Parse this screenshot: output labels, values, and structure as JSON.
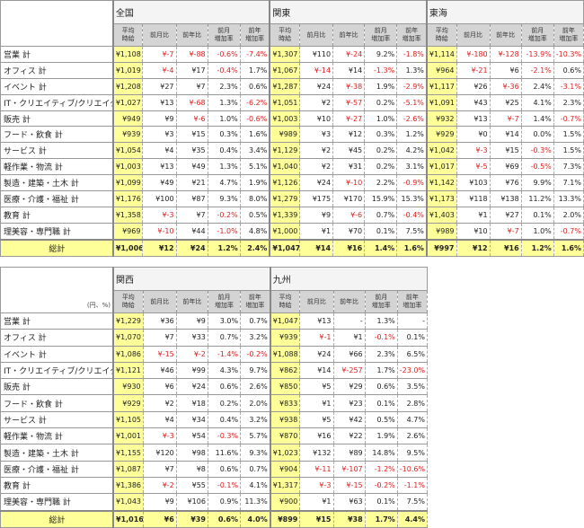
{
  "unit_label": "(円、%)",
  "sub_headers": [
    "平均時給",
    "前月比",
    "前年比",
    "前月増加率",
    "前年増加率"
  ],
  "sub_headers_display": [
    "平均\n時給",
    "前月比",
    "前年比",
    "前月\n増加率",
    "前年\n増加率"
  ],
  "row_labels": [
    "営業 計",
    "オフィス 計",
    "イベント 計",
    "IT・クリエイティブ/クリエイター 計",
    "販売 計",
    "フード・飲食 計",
    "サービス 計",
    "軽作業・物流 計",
    "製造・建築・土木 計",
    "医療・介護・福祉 計",
    "教育 計",
    "理美容・専門職 計",
    "総計"
  ],
  "colors": {
    "highlight": "#ffff99",
    "negative": "#e02020",
    "header": "#d4d4d4"
  },
  "tables": [
    {
      "corner": "",
      "regions": [
        {
          "name": "全国",
          "rows": [
            [
              "¥1,108",
              "¥-7",
              "¥-88",
              "-0.6%",
              "-7.4%"
            ],
            [
              "¥1,019",
              "¥-4",
              "¥17",
              "-0.4%",
              "1.7%"
            ],
            [
              "¥1,208",
              "¥27",
              "¥7",
              "2.3%",
              "0.6%"
            ],
            [
              "¥1,027",
              "¥13",
              "¥-68",
              "1.3%",
              "-6.2%"
            ],
            [
              "¥949",
              "¥9",
              "¥-6",
              "1.0%",
              "-0.6%"
            ],
            [
              "¥939",
              "¥3",
              "¥15",
              "0.3%",
              "1.6%"
            ],
            [
              "¥1,054",
              "¥4",
              "¥35",
              "0.4%",
              "3.4%"
            ],
            [
              "¥1,003",
              "¥13",
              "¥49",
              "1.3%",
              "5.1%"
            ],
            [
              "¥1,099",
              "¥49",
              "¥21",
              "4.7%",
              "1.9%"
            ],
            [
              "¥1,176",
              "¥100",
              "¥87",
              "9.3%",
              "8.0%"
            ],
            [
              "¥1,358",
              "¥-3",
              "¥7",
              "-0.2%",
              "0.5%"
            ],
            [
              "¥969",
              "¥-10",
              "¥44",
              "-1.0%",
              "4.8%"
            ],
            [
              "¥1,006",
              "¥12",
              "¥24",
              "1.2%",
              "2.4%"
            ]
          ]
        },
        {
          "name": "関東",
          "rows": [
            [
              "¥1,307",
              "¥110",
              "¥-24",
              "9.2%",
              "-1.8%"
            ],
            [
              "¥1,067",
              "¥-14",
              "¥14",
              "-1.3%",
              "1.3%"
            ],
            [
              "¥1,287",
              "¥24",
              "¥-38",
              "1.9%",
              "-2.9%"
            ],
            [
              "¥1,051",
              "¥2",
              "¥-57",
              "0.2%",
              "-5.1%"
            ],
            [
              "¥1,003",
              "¥10",
              "¥-27",
              "1.0%",
              "-2.6%"
            ],
            [
              "¥989",
              "¥3",
              "¥12",
              "0.3%",
              "1.2%"
            ],
            [
              "¥1,129",
              "¥2",
              "¥45",
              "0.2%",
              "4.2%"
            ],
            [
              "¥1,040",
              "¥2",
              "¥31",
              "0.2%",
              "3.1%"
            ],
            [
              "¥1,126",
              "¥24",
              "¥-10",
              "2.2%",
              "-0.9%"
            ],
            [
              "¥1,279",
              "¥175",
              "¥170",
              "15.9%",
              "15.3%"
            ],
            [
              "¥1,339",
              "¥9",
              "¥-6",
              "0.7%",
              "-0.4%"
            ],
            [
              "¥1,000",
              "¥1",
              "¥70",
              "0.1%",
              "7.5%"
            ],
            [
              "¥1,047",
              "¥14",
              "¥16",
              "1.4%",
              "1.6%"
            ]
          ]
        },
        {
          "name": "東海",
          "rows": [
            [
              "¥1,114",
              "¥-180",
              "¥-128",
              "-13.9%",
              "-10.3%"
            ],
            [
              "¥964",
              "¥-21",
              "¥6",
              "-2.1%",
              "0.6%"
            ],
            [
              "¥1,117",
              "¥26",
              "¥-36",
              "2.4%",
              "-3.1%"
            ],
            [
              "¥1,091",
              "¥43",
              "¥25",
              "4.1%",
              "2.3%"
            ],
            [
              "¥932",
              "¥13",
              "¥-7",
              "1.4%",
              "-0.7%"
            ],
            [
              "¥929",
              "¥0",
              "¥14",
              "0.0%",
              "1.5%"
            ],
            [
              "¥1,042",
              "¥-3",
              "¥15",
              "-0.3%",
              "1.5%"
            ],
            [
              "¥1,017",
              "¥-5",
              "¥69",
              "-0.5%",
              "7.3%"
            ],
            [
              "¥1,142",
              "¥103",
              "¥76",
              "9.9%",
              "7.1%"
            ],
            [
              "¥1,173",
              "¥118",
              "¥138",
              "11.2%",
              "13.3%"
            ],
            [
              "¥1,403",
              "¥1",
              "¥27",
              "0.1%",
              "2.0%"
            ],
            [
              "¥989",
              "¥10",
              "¥-7",
              "1.0%",
              "-0.7%"
            ],
            [
              "¥997",
              "¥12",
              "¥16",
              "1.2%",
              "1.6%"
            ]
          ]
        }
      ]
    },
    {
      "corner": "(円、%)",
      "regions": [
        {
          "name": "関西",
          "rows": [
            [
              "¥1,229",
              "¥36",
              "¥9",
              "3.0%",
              "0.7%"
            ],
            [
              "¥1,070",
              "¥7",
              "¥33",
              "0.7%",
              "3.2%"
            ],
            [
              "¥1,086",
              "¥-15",
              "¥-2",
              "-1.4%",
              "-0.2%"
            ],
            [
              "¥1,121",
              "¥46",
              "¥99",
              "4.3%",
              "9.7%"
            ],
            [
              "¥930",
              "¥6",
              "¥24",
              "0.6%",
              "2.6%"
            ],
            [
              "¥929",
              "¥2",
              "¥18",
              "0.2%",
              "2.0%"
            ],
            [
              "¥1,105",
              "¥4",
              "¥34",
              "0.4%",
              "3.2%"
            ],
            [
              "¥1,001",
              "¥-3",
              "¥54",
              "-0.3%",
              "5.7%"
            ],
            [
              "¥1,155",
              "¥120",
              "¥98",
              "11.6%",
              "9.3%"
            ],
            [
              "¥1,087",
              "¥7",
              "¥8",
              "0.6%",
              "0.7%"
            ],
            [
              "¥1,386",
              "¥-2",
              "¥55",
              "-0.1%",
              "4.1%"
            ],
            [
              "¥1,043",
              "¥9",
              "¥106",
              "0.9%",
              "11.3%"
            ],
            [
              "¥1,016",
              "¥6",
              "¥39",
              "0.6%",
              "4.0%"
            ]
          ]
        },
        {
          "name": "九州",
          "rows": [
            [
              "¥1,047",
              "¥13",
              "-",
              "1.3%",
              "-"
            ],
            [
              "¥939",
              "¥-1",
              "¥1",
              "-0.1%",
              "0.1%"
            ],
            [
              "¥1,088",
              "¥24",
              "¥66",
              "2.3%",
              "6.5%"
            ],
            [
              "¥862",
              "¥14",
              "¥-257",
              "1.7%",
              "-23.0%"
            ],
            [
              "¥850",
              "¥5",
              "¥29",
              "0.6%",
              "3.5%"
            ],
            [
              "¥833",
              "¥1",
              "¥23",
              "0.1%",
              "2.8%"
            ],
            [
              "¥938",
              "¥5",
              "¥42",
              "0.5%",
              "4.7%"
            ],
            [
              "¥870",
              "¥16",
              "¥22",
              "1.9%",
              "2.6%"
            ],
            [
              "¥1,023",
              "¥132",
              "¥89",
              "14.8%",
              "9.5%"
            ],
            [
              "¥904",
              "¥-11",
              "¥-107",
              "-1.2%",
              "-10.6%"
            ],
            [
              "¥1,317",
              "¥-3",
              "¥-15",
              "-0.2%",
              "-1.1%"
            ],
            [
              "¥900",
              "¥1",
              "¥63",
              "0.1%",
              "7.5%"
            ],
            [
              "¥899",
              "¥15",
              "¥38",
              "1.7%",
              "4.4%"
            ]
          ]
        }
      ]
    }
  ]
}
